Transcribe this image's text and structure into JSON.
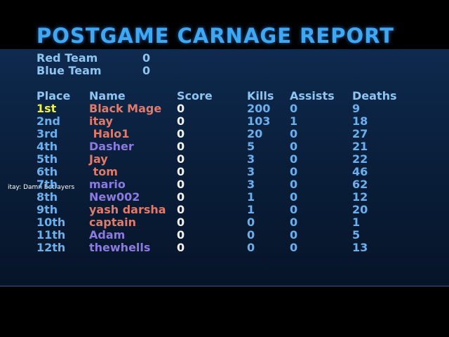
{
  "header": {
    "title": "POSTGAME CARNAGE REPORT"
  },
  "teams": [
    {
      "name": "Red Team",
      "score": "0"
    },
    {
      "name": "Blue Team",
      "score": "0"
    }
  ],
  "chat": "itay: Damn betrayers",
  "table": {
    "columns": [
      "Place",
      "Name",
      "Score",
      "Kills",
      "Assists",
      "Deaths"
    ],
    "rows": [
      [
        "1st",
        "Black Mage",
        "0",
        "200",
        "0",
        "9"
      ],
      [
        "2nd",
        "itay",
        "0",
        "103",
        "1",
        "18"
      ],
      [
        "3rd",
        " Halo1",
        "0",
        "20",
        "0",
        "27"
      ],
      [
        "4th",
        "Dasher",
        "0",
        "5",
        "0",
        "21"
      ],
      [
        "5th",
        "Jay",
        "0",
        "3",
        "0",
        "22"
      ],
      [
        "6th",
        " tom",
        "0",
        "3",
        "0",
        "46"
      ],
      [
        "7th",
        "mario",
        "0",
        "3",
        "0",
        "62"
      ],
      [
        "8th",
        "New002",
        "0",
        "1",
        "0",
        "12"
      ],
      [
        "9th",
        "yash darsha",
        "0",
        "1",
        "0",
        "20"
      ],
      [
        "10th",
        "captain",
        "0",
        "0",
        "0",
        "1"
      ],
      [
        "11th",
        "Adam",
        "0",
        "0",
        "0",
        "5"
      ],
      [
        "12th",
        "thewhells",
        "0",
        "0",
        "0",
        "13"
      ]
    ],
    "name_colors": [
      "#e07a6a",
      "#e07a6a",
      "#e07a6a",
      "#8c7ae0",
      "#e07a6a",
      "#e07a6a",
      "#8c7ae0",
      "#8c7ae0",
      "#e07a6a",
      "#e07a6a",
      "#8c7ae0",
      "#8c7ae0"
    ]
  }
}
